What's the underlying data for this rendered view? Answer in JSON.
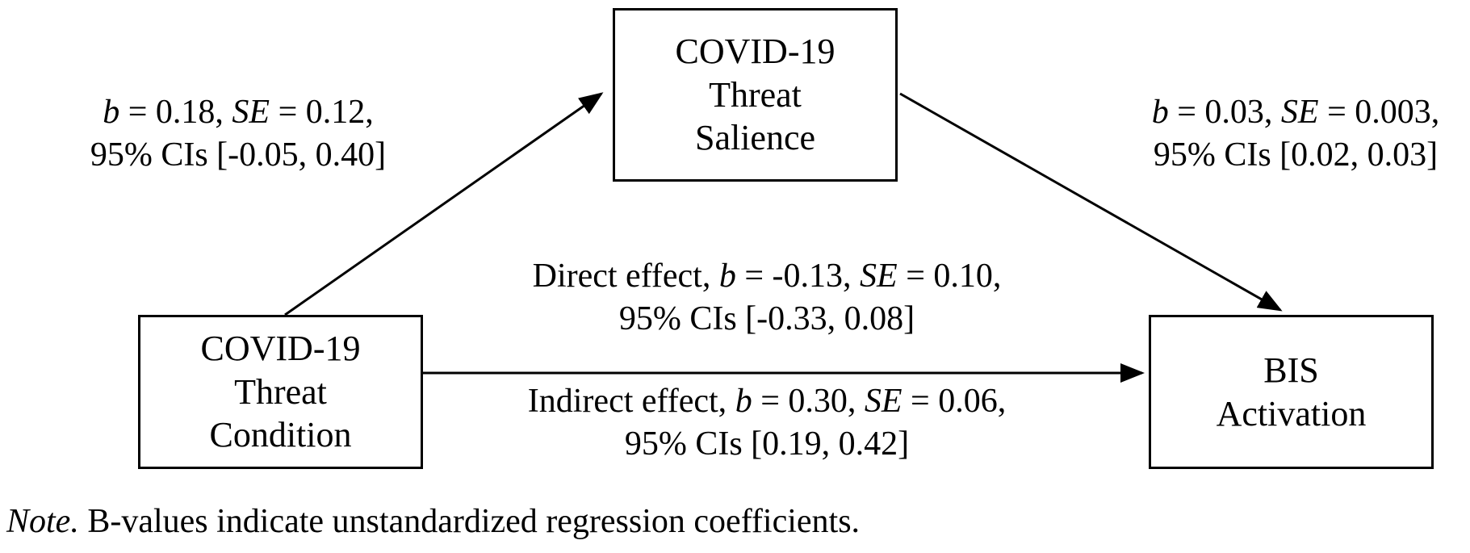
{
  "nodes": {
    "mediator": {
      "line1": "COVID-19",
      "line2": "Threat",
      "line3": "Salience"
    },
    "predictor": {
      "line1": "COVID-19",
      "line2": "Threat",
      "line3": "Condition"
    },
    "outcome": {
      "line1": "BIS",
      "line2": "Activation"
    }
  },
  "paths": {
    "a": {
      "b_label": "b",
      "b_value": " = 0.18, ",
      "se_label": "SE",
      "se_value": " = 0.12,",
      "ci": "95% CIs [-0.05, 0.40]"
    },
    "b": {
      "b_label": "b",
      "b_value": " = 0.03, ",
      "se_label": "SE",
      "se_value": " = 0.003,",
      "ci": "95% CIs [0.02, 0.03]"
    },
    "direct": {
      "prefix": "Direct effect, ",
      "b_label": "b",
      "b_value": " = -0.13, ",
      "se_label": "SE",
      "se_value": " = 0.10,",
      "ci": "95% CIs [-0.33, 0.08]"
    },
    "indirect": {
      "prefix": "Indirect effect, ",
      "b_label": "b",
      "b_value": " = 0.30, ",
      "se_label": "SE",
      "se_value": " = 0.06,",
      "ci": "95% CIs [0.19, 0.42]"
    }
  },
  "note": {
    "label": "Note.",
    "text": " B-values indicate unstandardized regression coefficients."
  }
}
